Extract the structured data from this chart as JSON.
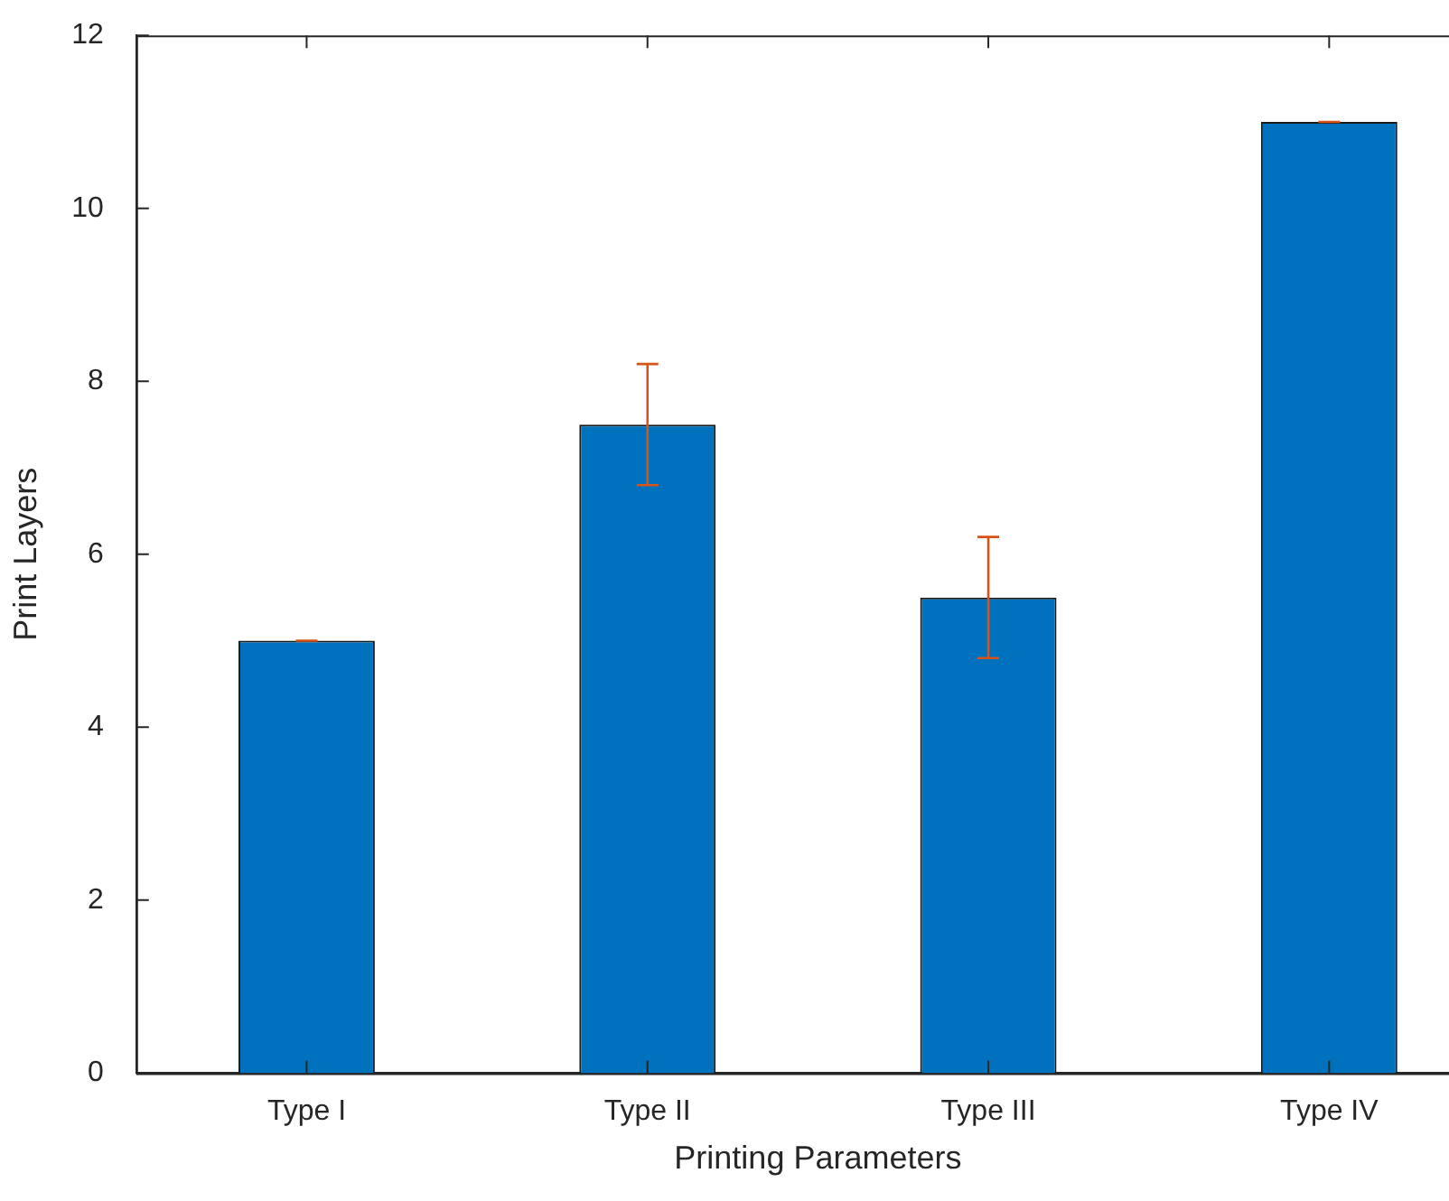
{
  "chart_data": {
    "type": "bar",
    "xlabel": "Printing Parameters",
    "ylabel": "Print Layers",
    "categories": [
      "Type I",
      "Type II",
      "Type III",
      "Type IV"
    ],
    "values": [
      5,
      7.5,
      5.5,
      11
    ],
    "errors": [
      0,
      0.7,
      0.7,
      0
    ],
    "color": "#0072bd",
    "ylim": [
      0,
      12
    ],
    "yticks": [
      0,
      2,
      4,
      6,
      8,
      10,
      12
    ]
  }
}
